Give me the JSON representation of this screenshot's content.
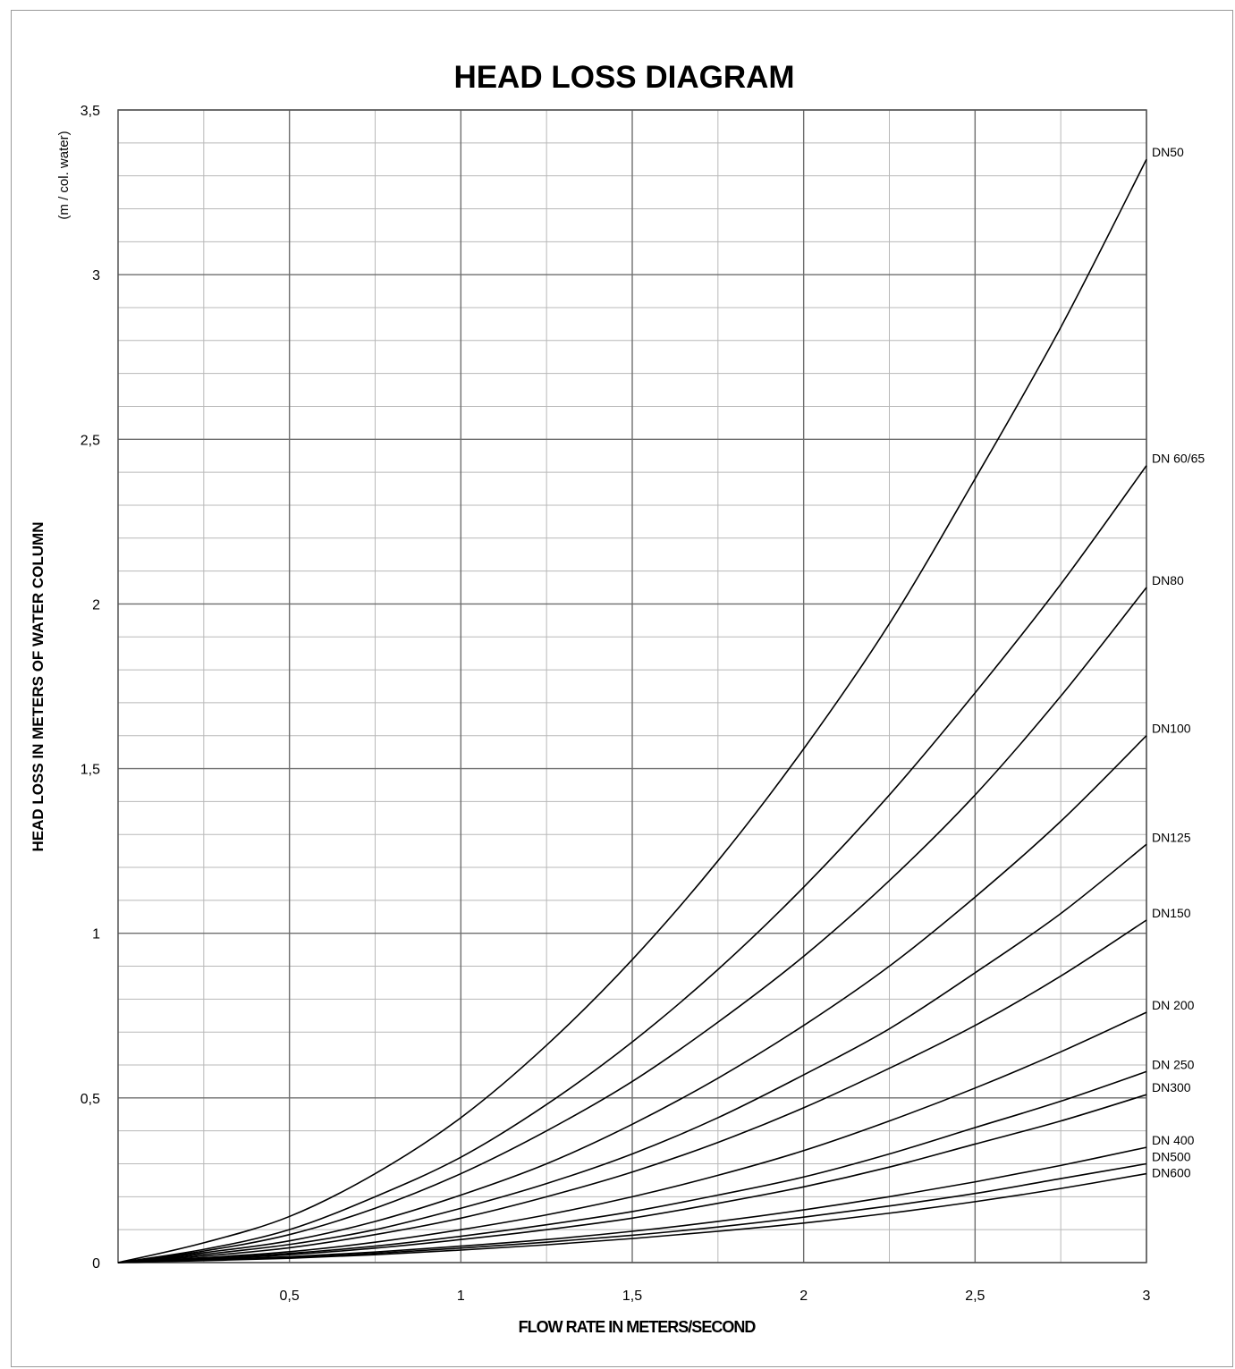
{
  "chart_data": {
    "type": "line",
    "title": "HEAD LOSS DIAGRAM",
    "xlabel": "FLOW RATE IN METERS/SECOND",
    "ylabel": "HEAD LOSS IN METERS OF WATER COLUMN",
    "ylabel_unit": "(m  / col. water)",
    "xlim": [
      0,
      3
    ],
    "ylim": [
      0,
      3.5
    ],
    "x_ticks": [
      {
        "value": 0.5,
        "label": "0,5"
      },
      {
        "value": 1,
        "label": "1"
      },
      {
        "value": 1.5,
        "label": "1,5"
      },
      {
        "value": 2,
        "label": "2"
      },
      {
        "value": 2.5,
        "label": "2,5"
      },
      {
        "value": 3,
        "label": "3"
      }
    ],
    "y_ticks": [
      {
        "value": 0,
        "label": "0"
      },
      {
        "value": 0.5,
        "label": "0,5"
      },
      {
        "value": 1,
        "label": "1"
      },
      {
        "value": 1.5,
        "label": "1,5"
      },
      {
        "value": 2,
        "label": "2"
      },
      {
        "value": 2.5,
        "label": "2,5"
      },
      {
        "value": 3,
        "label": "3"
      },
      {
        "value": 3.5,
        "label": "3,5"
      }
    ],
    "grid": true,
    "legend": "line-end labels on right",
    "x": [
      0,
      0.25,
      0.5,
      0.75,
      1,
      1.25,
      1.5,
      1.75,
      2,
      2.25,
      2.5,
      2.75,
      3
    ],
    "series": [
      {
        "name": "DN50",
        "values": [
          0,
          0.06,
          0.14,
          0.27,
          0.44,
          0.66,
          0.92,
          1.22,
          1.56,
          1.94,
          2.38,
          2.84,
          3.35
        ]
      },
      {
        "name": "DN 60/65",
        "values": [
          0,
          0.04,
          0.1,
          0.2,
          0.32,
          0.48,
          0.67,
          0.89,
          1.14,
          1.42,
          1.73,
          2.06,
          2.42
        ]
      },
      {
        "name": "DN80",
        "values": [
          0,
          0.035,
          0.085,
          0.165,
          0.27,
          0.4,
          0.55,
          0.73,
          0.93,
          1.16,
          1.42,
          1.72,
          2.05
        ]
      },
      {
        "name": "DN100",
        "values": [
          0,
          0.03,
          0.066,
          0.125,
          0.205,
          0.3,
          0.42,
          0.56,
          0.72,
          0.9,
          1.11,
          1.34,
          1.6
        ]
      },
      {
        "name": "DN125",
        "values": [
          0,
          0.025,
          0.055,
          0.1,
          0.165,
          0.24,
          0.33,
          0.44,
          0.57,
          0.71,
          0.88,
          1.06,
          1.27
        ]
      },
      {
        "name": "DN150",
        "values": [
          0,
          0.02,
          0.045,
          0.085,
          0.135,
          0.2,
          0.275,
          0.365,
          0.47,
          0.59,
          0.72,
          0.87,
          1.04
        ]
      },
      {
        "name": "DN 200",
        "values": [
          0,
          0.015,
          0.033,
          0.062,
          0.1,
          0.145,
          0.2,
          0.265,
          0.34,
          0.43,
          0.53,
          0.64,
          0.76
        ]
      },
      {
        "name": "DN 250",
        "values": [
          0,
          0.012,
          0.028,
          0.05,
          0.08,
          0.115,
          0.155,
          0.205,
          0.26,
          0.33,
          0.41,
          0.49,
          0.58
        ]
      },
      {
        "name": "DN300",
        "values": [
          0,
          0.01,
          0.024,
          0.044,
          0.07,
          0.1,
          0.135,
          0.18,
          0.23,
          0.29,
          0.36,
          0.43,
          0.51
        ]
      },
      {
        "name": "DN 400",
        "values": [
          0,
          0.008,
          0.018,
          0.032,
          0.05,
          0.07,
          0.095,
          0.125,
          0.16,
          0.2,
          0.245,
          0.295,
          0.35
        ]
      },
      {
        "name": "DN500",
        "values": [
          0,
          0.007,
          0.015,
          0.028,
          0.044,
          0.062,
          0.083,
          0.108,
          0.138,
          0.172,
          0.21,
          0.255,
          0.3
        ]
      },
      {
        "name": "DN600",
        "values": [
          0,
          0.006,
          0.013,
          0.024,
          0.038,
          0.054,
          0.073,
          0.095,
          0.12,
          0.15,
          0.185,
          0.225,
          0.27
        ]
      }
    ]
  }
}
